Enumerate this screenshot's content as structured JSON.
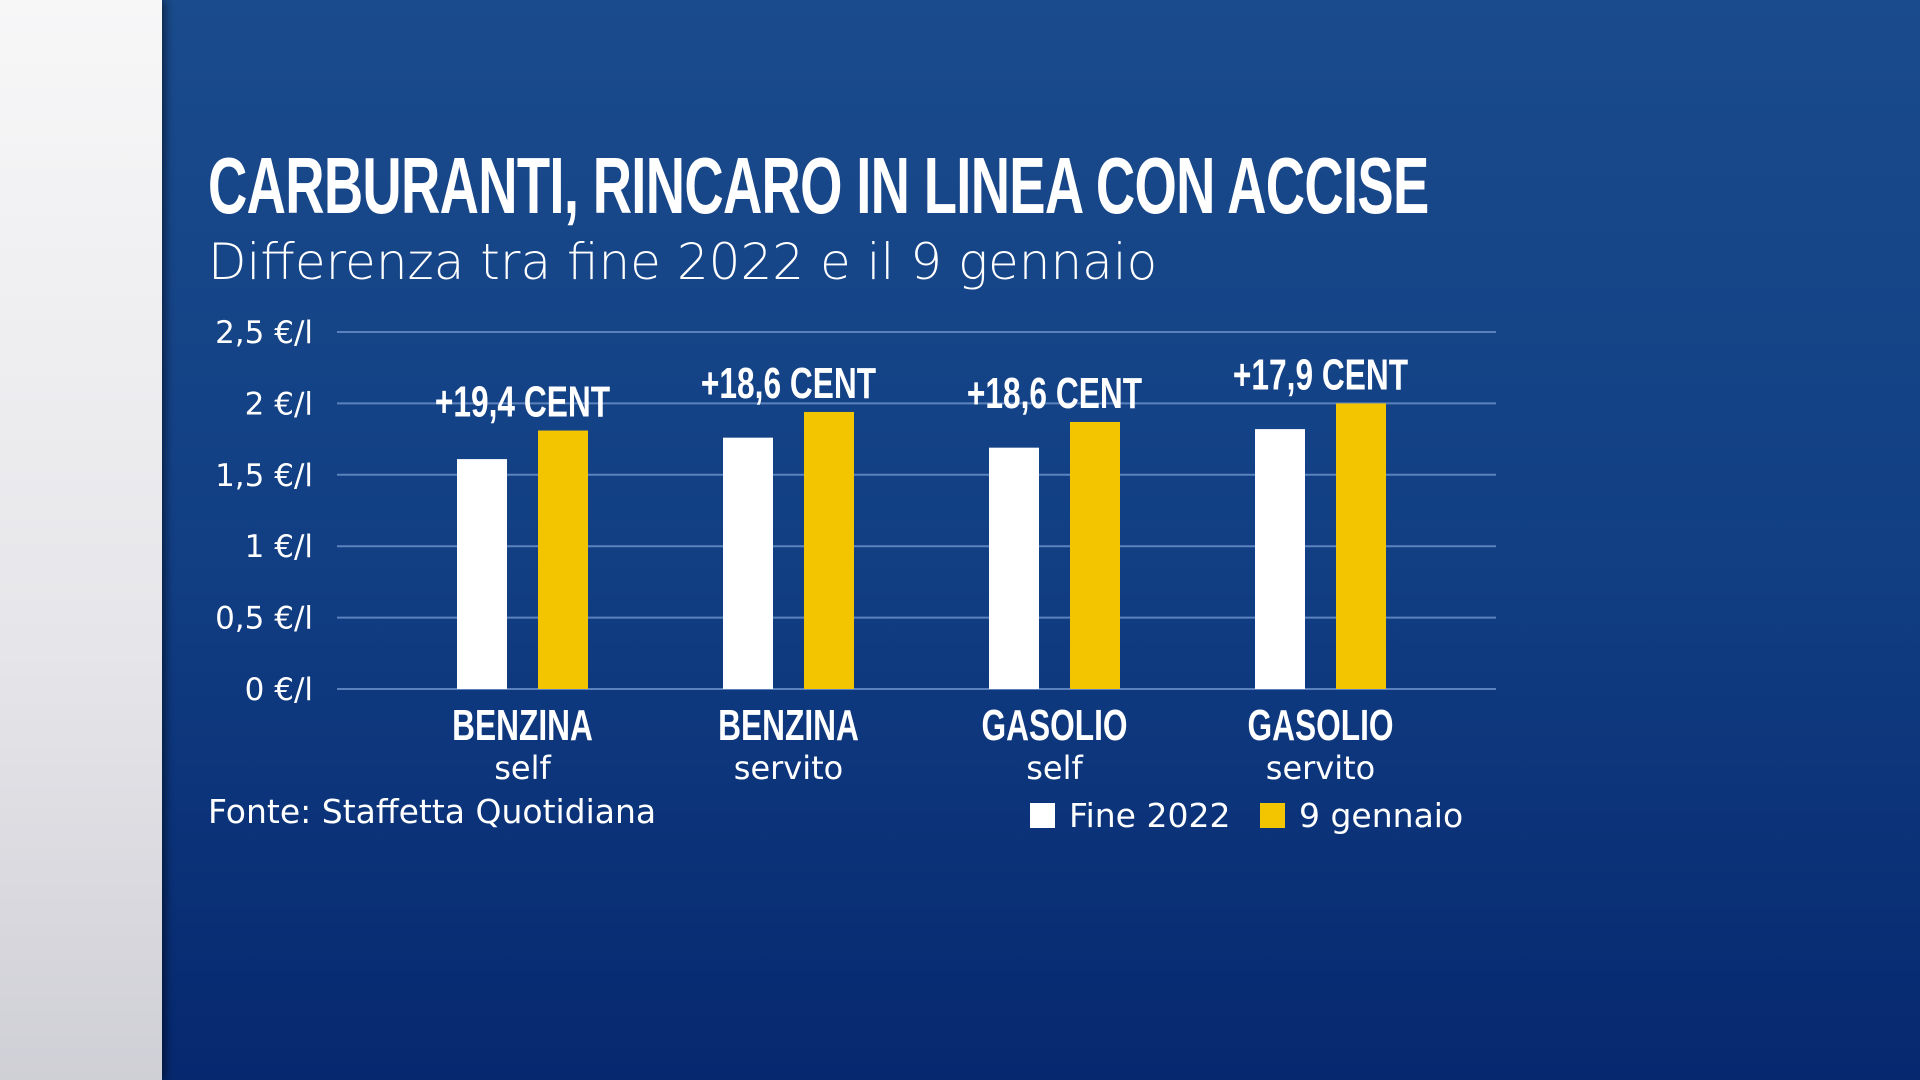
{
  "chart_data": {
    "type": "bar",
    "title": "CARBURANTI, RINCARO IN LINEA CON ACCISE",
    "subtitle": "Differenza tra fine 2022 e il 9 gennaio",
    "categories": [
      {
        "main": "BENZINA",
        "sub": "self"
      },
      {
        "main": "BENZINA",
        "sub": "servito"
      },
      {
        "main": "GASOLIO",
        "sub": "self"
      },
      {
        "main": "GASOLIO",
        "sub": "servito"
      }
    ],
    "series": [
      {
        "name": "Fine 2022",
        "color": "#ffffff",
        "values": [
          1.61,
          1.76,
          1.69,
          1.82
        ]
      },
      {
        "name": "9 gennaio",
        "color": "#f2c500",
        "values": [
          1.81,
          1.94,
          1.87,
          2.0
        ]
      }
    ],
    "annotations": [
      "+19,4 CENT",
      "+18,6 CENT",
      "+18,6 CENT",
      "+17,9 CENT"
    ],
    "yticks": [
      0,
      0.5,
      1,
      1.5,
      2,
      2.5
    ],
    "ytick_labels": [
      "0 €/l",
      "0,5 €/l",
      "1 €/l",
      "1,5 €/l",
      "2 €/l",
      "2,5 €/l"
    ],
    "ylim": [
      0,
      2.5
    ],
    "ylabel": "",
    "xlabel": "",
    "grid": true,
    "legend_position": "bottom-right",
    "source": "Fonte: Staffetta Quotidiana"
  }
}
